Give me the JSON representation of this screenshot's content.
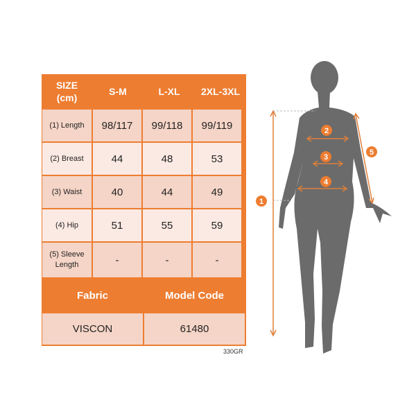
{
  "table": {
    "header": {
      "label": "SIZE\n(cm)",
      "sizes": [
        "S-M",
        "L-XL",
        "2XL-3XL"
      ]
    },
    "rows": [
      {
        "label": "(1) Length",
        "values": [
          "98/117",
          "99/118",
          "99/119"
        ]
      },
      {
        "label": "(2) Breast",
        "values": [
          "44",
          "48",
          "53"
        ]
      },
      {
        "label": "(3) Waist",
        "values": [
          "40",
          "44",
          "49"
        ]
      },
      {
        "label": "(4) Hip",
        "values": [
          "51",
          "55",
          "59"
        ]
      },
      {
        "label": "(5) Sleeve Length",
        "values": [
          "-",
          "-",
          "-"
        ]
      }
    ],
    "footer_headers": [
      "Fabric",
      "Model Code"
    ],
    "footer_values": [
      "VISCON",
      "61480"
    ]
  },
  "code": "330GR",
  "figure": {
    "markers": [
      "1",
      "2",
      "3",
      "4",
      "5"
    ]
  },
  "colors": {
    "accent": "#ED7D31",
    "silhouette": "#6B6B6B",
    "cell_dark": "#F5D5C7",
    "cell_light": "#FBEAE3"
  }
}
